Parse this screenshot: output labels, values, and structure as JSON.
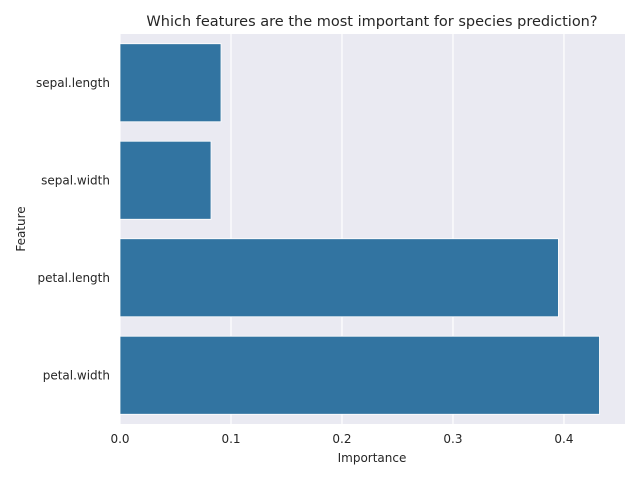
{
  "chart_data": {
    "type": "bar",
    "orientation": "horizontal",
    "title": "Which features are the most important for species prediction?",
    "xlabel": "Importance",
    "ylabel": "Feature",
    "categories": [
      "sepal.length",
      "sepal.width",
      "petal.length",
      "petal.width"
    ],
    "values": [
      0.091,
      0.082,
      0.395,
      0.432
    ],
    "xlim": [
      0.0,
      0.455
    ],
    "xticks": [
      0.0,
      0.1,
      0.2,
      0.3,
      0.4
    ],
    "xtick_labels": [
      "0.0",
      "0.1",
      "0.2",
      "0.3",
      "0.4"
    ],
    "grid": true,
    "colors": {
      "bar": "#3274a1",
      "plot_background": "#eaeaf2",
      "grid": "#ffffff"
    }
  }
}
